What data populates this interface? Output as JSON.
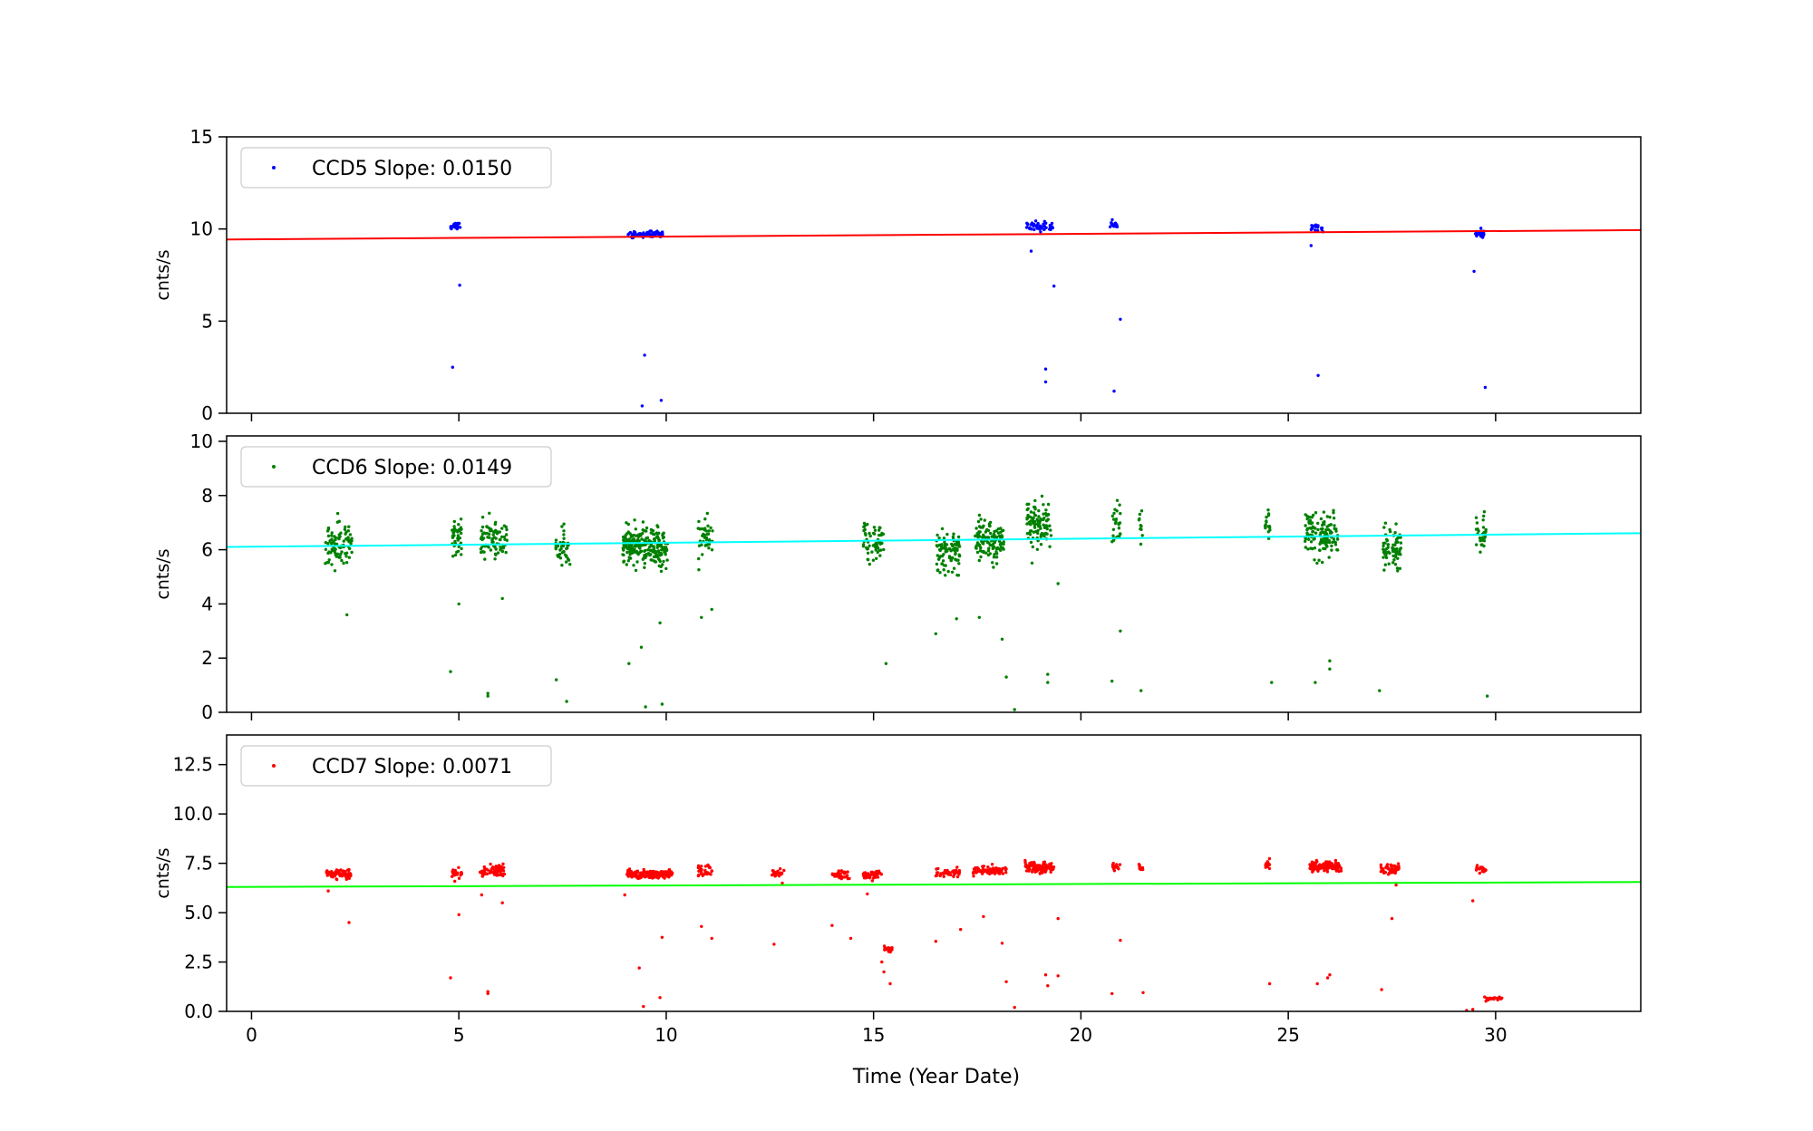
{
  "figure": {
    "xlabel": "Time (Year Date)"
  },
  "chart_data": [
    {
      "type": "scatter",
      "ylabel": "cnts/s",
      "xlim": [
        -0.6,
        33.5
      ],
      "ylim": [
        0,
        15
      ],
      "yticks": [
        0,
        5,
        10,
        15
      ],
      "yticklabels": [
        "0",
        "5",
        "10",
        "15"
      ],
      "xticks": [
        0,
        5,
        10,
        15,
        20,
        25,
        30
      ],
      "show_xticklabels": false,
      "legend": {
        "label": "CCD5 Slope: 0.0150",
        "marker_color": "#0000ff",
        "placement": "top-left"
      },
      "series": [
        {
          "name": "CCD5 Slope: 0.0150",
          "color": "#0000ff",
          "clusters": [
            {
              "x": 4.92,
              "dx": 0.12,
              "y": 10.1,
              "sd": 0.18,
              "n": 22
            },
            {
              "x": 9.5,
              "dx": 0.42,
              "y": 9.7,
              "sd": 0.13,
              "n": 75
            },
            {
              "x": 19.0,
              "dx": 0.32,
              "y": 10.15,
              "sd": 0.16,
              "n": 45
            },
            {
              "x": 20.8,
              "dx": 0.1,
              "y": 10.3,
              "sd": 0.16,
              "n": 16
            },
            {
              "x": 25.7,
              "dx": 0.15,
              "y": 10.05,
              "sd": 0.18,
              "n": 20
            },
            {
              "x": 29.6,
              "dx": 0.12,
              "y": 9.8,
              "sd": 0.2,
              "n": 25
            }
          ],
          "outliers": [
            [
              4.85,
              2.5
            ],
            [
              5.02,
              6.95
            ],
            [
              9.48,
              3.15
            ],
            [
              9.42,
              0.4
            ],
            [
              9.88,
              0.7
            ],
            [
              18.8,
              8.8
            ],
            [
              19.15,
              2.4
            ],
            [
              19.15,
              1.7
            ],
            [
              19.35,
              6.9
            ],
            [
              20.8,
              1.2
            ],
            [
              20.95,
              5.1
            ],
            [
              25.55,
              9.1
            ],
            [
              25.72,
              2.05
            ],
            [
              29.48,
              7.7
            ],
            [
              29.75,
              1.4
            ]
          ]
        }
      ],
      "fit_line": {
        "color": "#ff0000",
        "x": [
          -0.6,
          33.5
        ],
        "y": [
          9.43,
          9.94
        ]
      }
    },
    {
      "type": "scatter",
      "ylabel": "cnts/s",
      "xlim": [
        -0.6,
        33.5
      ],
      "ylim": [
        0,
        10.2
      ],
      "yticks": [
        0,
        2,
        4,
        6,
        8,
        10
      ],
      "yticklabels": [
        "0",
        "2",
        "4",
        "6",
        "8",
        "10"
      ],
      "xticks": [
        0,
        5,
        10,
        15,
        20,
        25,
        30
      ],
      "show_xticklabels": false,
      "legend": {
        "label": "CCD6 Slope: 0.0149",
        "marker_color": "#008000",
        "placement": "top-left"
      },
      "series": [
        {
          "name": "CCD6 Slope: 0.0149",
          "color": "#008000",
          "clusters": [
            {
              "x": 2.1,
              "dx": 0.32,
              "y": 6.2,
              "sd": 0.6,
              "n": 90
            },
            {
              "x": 4.95,
              "dx": 0.12,
              "y": 6.5,
              "sd": 0.6,
              "n": 40
            },
            {
              "x": 5.85,
              "dx": 0.32,
              "y": 6.4,
              "sd": 0.55,
              "n": 80
            },
            {
              "x": 7.5,
              "dx": 0.18,
              "y": 6.1,
              "sd": 0.5,
              "n": 40
            },
            {
              "x": 9.5,
              "dx": 0.55,
              "y": 6.1,
              "sd": 0.5,
              "n": 250
            },
            {
              "x": 10.95,
              "dx": 0.18,
              "y": 6.5,
              "sd": 0.6,
              "n": 40
            },
            {
              "x": 15.0,
              "dx": 0.25,
              "y": 6.3,
              "sd": 0.6,
              "n": 60
            },
            {
              "x": 16.8,
              "dx": 0.28,
              "y": 5.9,
              "sd": 0.5,
              "n": 90
            },
            {
              "x": 17.8,
              "dx": 0.35,
              "y": 6.4,
              "sd": 0.5,
              "n": 120
            },
            {
              "x": 19.0,
              "dx": 0.3,
              "y": 6.9,
              "sd": 0.55,
              "n": 100
            },
            {
              "x": 20.85,
              "dx": 0.1,
              "y": 6.9,
              "sd": 0.6,
              "n": 25
            },
            {
              "x": 21.45,
              "dx": 0.05,
              "y": 6.8,
              "sd": 0.5,
              "n": 10
            },
            {
              "x": 24.5,
              "dx": 0.06,
              "y": 7.0,
              "sd": 0.4,
              "n": 15
            },
            {
              "x": 25.8,
              "dx": 0.4,
              "y": 6.5,
              "sd": 0.55,
              "n": 130
            },
            {
              "x": 27.5,
              "dx": 0.22,
              "y": 6.1,
              "sd": 0.55,
              "n": 70
            },
            {
              "x": 29.65,
              "dx": 0.12,
              "y": 6.6,
              "sd": 0.55,
              "n": 30
            }
          ],
          "outliers": [
            [
              2.3,
              3.6
            ],
            [
              4.8,
              1.5
            ],
            [
              5.0,
              4.0
            ],
            [
              5.7,
              0.6
            ],
            [
              5.7,
              0.7
            ],
            [
              6.05,
              4.2
            ],
            [
              7.35,
              1.2
            ],
            [
              7.6,
              0.4
            ],
            [
              9.1,
              1.8
            ],
            [
              9.4,
              2.4
            ],
            [
              9.5,
              0.2
            ],
            [
              9.85,
              3.3
            ],
            [
              9.9,
              0.3
            ],
            [
              10.85,
              3.5
            ],
            [
              11.1,
              3.8
            ],
            [
              15.3,
              1.8
            ],
            [
              16.5,
              2.9
            ],
            [
              17.0,
              3.45
            ],
            [
              17.55,
              3.5
            ],
            [
              18.1,
              2.7
            ],
            [
              18.2,
              1.3
            ],
            [
              18.4,
              0.1
            ],
            [
              19.2,
              1.4
            ],
            [
              19.2,
              1.1
            ],
            [
              19.45,
              4.75
            ],
            [
              20.75,
              1.15
            ],
            [
              20.95,
              3.0
            ],
            [
              21.45,
              0.8
            ],
            [
              24.6,
              1.1
            ],
            [
              25.65,
              1.1
            ],
            [
              26.0,
              1.9
            ],
            [
              26.0,
              1.6
            ],
            [
              27.2,
              0.8
            ],
            [
              29.8,
              0.6
            ]
          ]
        }
      ],
      "fit_line": {
        "color": "#00ffff",
        "x": [
          -0.6,
          33.5
        ],
        "y": [
          6.1,
          6.61
        ]
      }
    },
    {
      "type": "scatter",
      "ylabel": "cnts/s",
      "xlim": [
        -0.6,
        33.5
      ],
      "ylim": [
        0,
        14
      ],
      "yticks": [
        0,
        2.5,
        5,
        7.5,
        10,
        12.5
      ],
      "yticklabels": [
        "0.0",
        "2.5",
        "5.0",
        "7.5",
        "10.0",
        "12.5"
      ],
      "xticks": [
        0,
        5,
        10,
        15,
        20,
        25,
        30
      ],
      "xticklabels": [
        "0",
        "5",
        "10",
        "15",
        "20",
        "25",
        "30"
      ],
      "show_xticklabels": true,
      "legend": {
        "label": "CCD7 Slope: 0.0071",
        "marker_color": "#ff0000",
        "placement": "top-left"
      },
      "series": [
        {
          "name": "CCD7 Slope: 0.0071",
          "color": "#ff0000",
          "clusters": [
            {
              "x": 2.1,
              "dx": 0.3,
              "y": 6.95,
              "sd": 0.15,
              "n": 70
            },
            {
              "x": 4.95,
              "dx": 0.12,
              "y": 7.0,
              "sd": 0.2,
              "n": 25
            },
            {
              "x": 5.8,
              "dx": 0.3,
              "y": 7.1,
              "sd": 0.2,
              "n": 70
            },
            {
              "x": 9.6,
              "dx": 0.55,
              "y": 6.95,
              "sd": 0.13,
              "n": 200
            },
            {
              "x": 10.95,
              "dx": 0.18,
              "y": 7.15,
              "sd": 0.2,
              "n": 30
            },
            {
              "x": 12.7,
              "dx": 0.15,
              "y": 7.05,
              "sd": 0.15,
              "n": 25
            },
            {
              "x": 14.2,
              "dx": 0.22,
              "y": 6.95,
              "sd": 0.15,
              "n": 40
            },
            {
              "x": 15.0,
              "dx": 0.25,
              "y": 6.9,
              "sd": 0.15,
              "n": 50
            },
            {
              "x": 16.8,
              "dx": 0.3,
              "y": 7.0,
              "sd": 0.15,
              "n": 50
            },
            {
              "x": 17.8,
              "dx": 0.4,
              "y": 7.1,
              "sd": 0.15,
              "n": 90
            },
            {
              "x": 19.0,
              "dx": 0.35,
              "y": 7.3,
              "sd": 0.2,
              "n": 100
            },
            {
              "x": 20.85,
              "dx": 0.1,
              "y": 7.35,
              "sd": 0.2,
              "n": 15
            },
            {
              "x": 21.45,
              "dx": 0.05,
              "y": 7.3,
              "sd": 0.15,
              "n": 10
            },
            {
              "x": 24.5,
              "dx": 0.05,
              "y": 7.4,
              "sd": 0.2,
              "n": 15
            },
            {
              "x": 25.9,
              "dx": 0.38,
              "y": 7.35,
              "sd": 0.18,
              "n": 110
            },
            {
              "x": 27.45,
              "dx": 0.22,
              "y": 7.2,
              "sd": 0.2,
              "n": 50
            },
            {
              "x": 29.65,
              "dx": 0.12,
              "y": 7.2,
              "sd": 0.15,
              "n": 25
            },
            {
              "x": 15.35,
              "dx": 0.1,
              "y": 3.15,
              "sd": 0.08,
              "n": 20
            },
            {
              "x": 29.95,
              "dx": 0.22,
              "y": 0.65,
              "sd": 0.08,
              "n": 25
            }
          ],
          "outliers": [
            [
              1.85,
              6.1
            ],
            [
              2.35,
              4.5
            ],
            [
              4.8,
              1.7
            ],
            [
              5.0,
              4.9
            ],
            [
              5.55,
              5.9
            ],
            [
              5.7,
              0.9
            ],
            [
              5.7,
              1.0
            ],
            [
              6.05,
              5.5
            ],
            [
              9.0,
              5.9
            ],
            [
              9.35,
              2.2
            ],
            [
              9.45,
              0.25
            ],
            [
              9.9,
              3.75
            ],
            [
              9.85,
              0.7
            ],
            [
              10.85,
              4.3
            ],
            [
              11.1,
              3.7
            ],
            [
              12.6,
              3.4
            ],
            [
              12.8,
              6.5
            ],
            [
              14.0,
              4.35
            ],
            [
              14.45,
              3.7
            ],
            [
              14.85,
              5.95
            ],
            [
              15.2,
              2.5
            ],
            [
              15.25,
              2.0
            ],
            [
              15.4,
              1.4
            ],
            [
              16.5,
              3.55
            ],
            [
              17.1,
              4.15
            ],
            [
              17.65,
              4.8
            ],
            [
              18.1,
              3.45
            ],
            [
              18.2,
              1.5
            ],
            [
              18.4,
              0.2
            ],
            [
              19.15,
              1.85
            ],
            [
              19.2,
              1.3
            ],
            [
              19.45,
              1.8
            ],
            [
              19.45,
              4.7
            ],
            [
              20.75,
              0.9
            ],
            [
              20.95,
              3.6
            ],
            [
              21.5,
              0.95
            ],
            [
              24.55,
              1.4
            ],
            [
              25.7,
              1.4
            ],
            [
              25.95,
              1.7
            ],
            [
              26.0,
              1.85
            ],
            [
              27.25,
              1.1
            ],
            [
              27.6,
              6.4
            ],
            [
              27.5,
              4.7
            ],
            [
              29.45,
              5.6
            ],
            [
              29.3,
              0.05
            ],
            [
              29.45,
              0.1
            ]
          ]
        }
      ],
      "fit_line": {
        "color": "#00ff00",
        "x": [
          -0.6,
          33.5
        ],
        "y": [
          6.3,
          6.55
        ]
      }
    }
  ]
}
